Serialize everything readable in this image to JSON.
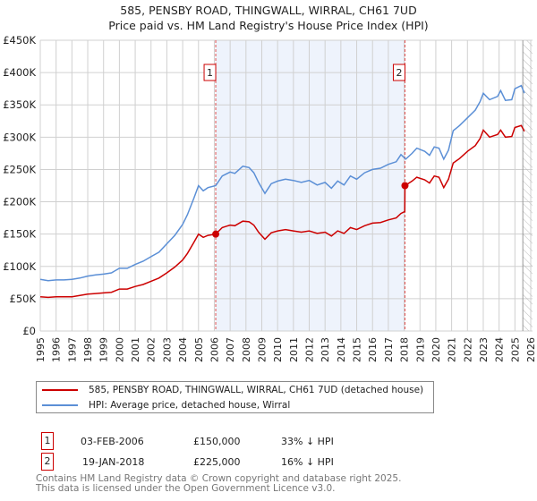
{
  "title": "585, PENSBY ROAD, THINGWALL, WIRRAL, CH61 7UD",
  "subtitle": "Price paid vs. HM Land Registry's House Price Index (HPI)",
  "chart_data": {
    "type": "line",
    "xlim": [
      1995,
      2026
    ],
    "ylim": [
      0,
      450000
    ],
    "yticks": [
      0,
      50000,
      100000,
      150000,
      200000,
      250000,
      300000,
      350000,
      400000,
      450000
    ],
    "ytick_labels": [
      "£0",
      "£50K",
      "£100K",
      "£150K",
      "£200K",
      "£250K",
      "£300K",
      "£350K",
      "£400K",
      "£450K"
    ],
    "xticks": [
      1995,
      1996,
      1997,
      1998,
      1999,
      2000,
      2001,
      2002,
      2003,
      2004,
      2005,
      2006,
      2007,
      2008,
      2009,
      2010,
      2011,
      2012,
      2013,
      2014,
      2015,
      2016,
      2017,
      2018,
      2019,
      2020,
      2021,
      2022,
      2023,
      2024,
      2025,
      2026
    ],
    "grid": true,
    "shaded_range": [
      2006.09,
      2018.05
    ],
    "forecast_hatch_from": 2025.5,
    "series": [
      {
        "name": "585, PENSBY ROAD, THINGWALL, WIRRAL, CH61 7UD (detached house)",
        "color": "#cc0000",
        "x": [
          1995,
          1995.5,
          1996,
          1996.5,
          1997,
          1997.5,
          1998,
          1998.5,
          1999,
          1999.5,
          2000,
          2000.5,
          2001,
          2001.5,
          2002,
          2002.5,
          2003,
          2003.5,
          2004,
          2004.3,
          2004.7,
          2005,
          2005.3,
          2005.6,
          2006.09,
          2006.5,
          2007,
          2007.3,
          2007.8,
          2008.2,
          2008.5,
          2008.8,
          2009.2,
          2009.6,
          2010,
          2010.5,
          2011,
          2011.5,
          2012,
          2012.5,
          2013,
          2013.4,
          2013.8,
          2014.2,
          2014.6,
          2015,
          2015.5,
          2016,
          2016.5,
          2017,
          2017.5,
          2017.8,
          2018.04,
          2018.05,
          2018.5,
          2018.8,
          2019.3,
          2019.6,
          2019.9,
          2020.2,
          2020.5,
          2020.8,
          2021.1,
          2021.5,
          2022,
          2022.5,
          2022.8,
          2023,
          2023.4,
          2023.9,
          2024.1,
          2024.4,
          2024.8,
          2025,
          2025.4,
          2025.6
        ],
        "y": [
          53000,
          52000,
          53000,
          53000,
          53000,
          55000,
          57000,
          58000,
          59000,
          60000,
          65000,
          65000,
          69000,
          72000,
          77000,
          82000,
          90000,
          99000,
          110000,
          120000,
          137000,
          150000,
          145000,
          148000,
          150000,
          160000,
          164000,
          163000,
          170000,
          169000,
          164000,
          153000,
          142000,
          152000,
          155000,
          157000,
          155000,
          153000,
          155000,
          151000,
          153000,
          147000,
          155000,
          151000,
          160000,
          157000,
          163000,
          167000,
          168000,
          172000,
          175000,
          182000,
          185000,
          225000,
          232000,
          238000,
          234000,
          229000,
          240000,
          238000,
          222000,
          235000,
          260000,
          267000,
          278000,
          287000,
          298000,
          311000,
          300000,
          304000,
          311000,
          300000,
          301000,
          315000,
          318000,
          309000
        ]
      },
      {
        "name": "HPI: Average price, detached house, Wirral",
        "color": "#5b8fd6",
        "x": [
          1995,
          1995.5,
          1996,
          1996.5,
          1997,
          1997.5,
          1998,
          1998.5,
          1999,
          1999.5,
          2000,
          2000.5,
          2001,
          2001.5,
          2002,
          2002.5,
          2003,
          2003.5,
          2004,
          2004.3,
          2004.7,
          2005,
          2005.3,
          2005.6,
          2006.09,
          2006.5,
          2007,
          2007.3,
          2007.8,
          2008.2,
          2008.5,
          2008.8,
          2009.2,
          2009.6,
          2010,
          2010.5,
          2011,
          2011.5,
          2012,
          2012.5,
          2013,
          2013.4,
          2013.8,
          2014.2,
          2014.6,
          2015,
          2015.5,
          2016,
          2016.5,
          2017,
          2017.5,
          2017.8,
          2018.1,
          2018.5,
          2018.8,
          2019.3,
          2019.6,
          2019.9,
          2020.2,
          2020.5,
          2020.8,
          2021.1,
          2021.5,
          2022,
          2022.5,
          2022.8,
          2023,
          2023.4,
          2023.9,
          2024.1,
          2024.4,
          2024.8,
          2025,
          2025.4,
          2025.6
        ],
        "y": [
          80000,
          78000,
          79000,
          79000,
          80000,
          82000,
          85000,
          87000,
          88000,
          90000,
          97000,
          97000,
          103000,
          108000,
          115000,
          122000,
          135000,
          148000,
          165000,
          180000,
          205000,
          225000,
          217000,
          222000,
          225000,
          240000,
          246000,
          244000,
          255000,
          253000,
          245000,
          230000,
          213000,
          228000,
          232000,
          235000,
          233000,
          230000,
          233000,
          226000,
          230000,
          221000,
          232000,
          226000,
          240000,
          235000,
          245000,
          250000,
          252000,
          258000,
          262000,
          273000,
          266000,
          275000,
          283000,
          278000,
          272000,
          285000,
          283000,
          266000,
          280000,
          310000,
          318000,
          330000,
          342000,
          355000,
          368000,
          358000,
          363000,
          372000,
          357000,
          358000,
          375000,
          380000,
          368000
        ]
      }
    ],
    "sales": [
      {
        "label": "1",
        "x": 2006.09,
        "y": 150000
      },
      {
        "label": "2",
        "x": 2018.05,
        "y": 225000
      }
    ]
  },
  "legend": [
    {
      "label": "585, PENSBY ROAD, THINGWALL, WIRRAL, CH61 7UD (detached house)",
      "color": "#cc0000"
    },
    {
      "label": "HPI: Average price, detached house, Wirral",
      "color": "#5b8fd6"
    }
  ],
  "transactions": [
    {
      "num": "1",
      "date": "03-FEB-2006",
      "price": "£150,000",
      "hpi": "33% ↓ HPI"
    },
    {
      "num": "2",
      "date": "19-JAN-2018",
      "price": "£225,000",
      "hpi": "16% ↓ HPI"
    }
  ],
  "footer": {
    "line1": "Contains HM Land Registry data © Crown copyright and database right 2025.",
    "line2": "This data is licensed under the Open Government Licence v3.0."
  }
}
